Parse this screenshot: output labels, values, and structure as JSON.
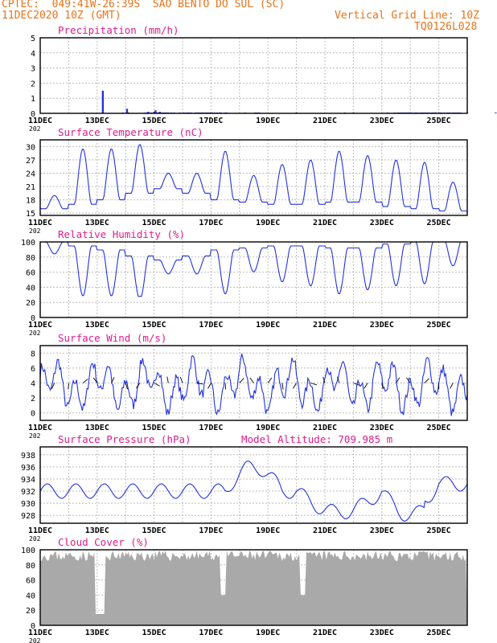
{
  "header": {
    "line1": "CPTEC:  049:41W-26:39S  SAO BENTO DO SUL (SC)",
    "line2": "11DEC2020 10Z (GMT)",
    "grid_note": "Vertical Grid Line: 10Z",
    "code": "TQ0126L028"
  },
  "colors": {
    "header": "#e8731a",
    "title": "#e01c8c",
    "data": "#2233dd",
    "cloud": "#a9a9a9",
    "grid": "#bbbbbb"
  },
  "x_axis": {
    "tick_labels": [
      "11DEC",
      "13DEC",
      "15DEC",
      "17DEC",
      "19DEC",
      "21DEC",
      "23DEC",
      "25DEC"
    ],
    "year_fragment": "202"
  },
  "chart_data": [
    {
      "id": "precip",
      "type": "bar",
      "title": "Precipitation (mm/h)",
      "ylim": [
        0,
        5
      ],
      "yticks": [
        "0",
        "1",
        "2",
        "3",
        "4",
        "5"
      ],
      "x": [
        1.55,
        2.2,
        2.9,
        3.05,
        3.1,
        3.7,
        3.75,
        3.8,
        3.9,
        4.0,
        4.05,
        4.1,
        4.15,
        4.2,
        4.25,
        4.3,
        4.35,
        4.4,
        4.45,
        4.5,
        4.6,
        4.7,
        4.9,
        5.05,
        5.15,
        5.2,
        5.25,
        5.3,
        5.45,
        5.5,
        5.55,
        5.6,
        5.65,
        5.7,
        5.75,
        5.8,
        5.85,
        5.9,
        5.95,
        6.0,
        6.05,
        6.1,
        6.2,
        6.3,
        6.35,
        6.5,
        6.55,
        7.2,
        7.55,
        7.6,
        7.65,
        7.7,
        9.0,
        10.7,
        11.0,
        12.2,
        12.45,
        12.55,
        12.6,
        12.65,
        12.7,
        12.75,
        12.8,
        12.85,
        12.9,
        12.95,
        13.0,
        13.05,
        13.15,
        13.2,
        13.25,
        13.35,
        13.4,
        13.45,
        13.5,
        13.55,
        13.6,
        13.65,
        13.75,
        13.8,
        13.85,
        13.9,
        14.0,
        14.05,
        14.1,
        14.2,
        14.3,
        14.35,
        14.4,
        14.5,
        14.55,
        14.6,
        14.65,
        14.7,
        14.75,
        15.0,
        16.0,
        17.5
      ],
      "values": [
        0.05,
        1.5,
        0.05,
        0.3,
        0.05,
        0.05,
        0.05,
        0.1,
        0.05,
        0.1,
        0.2,
        0.05,
        0.05,
        0.1,
        0.05,
        0.05,
        0.05,
        0.05,
        0.05,
        0.05,
        0.05,
        0.05,
        0.05,
        0.05,
        0.05,
        0.05,
        0.05,
        0.05,
        0.05,
        0.05,
        0.05,
        0.05,
        0.05,
        0.05,
        0.05,
        0.05,
        0.05,
        0.05,
        0.05,
        0.05,
        0.05,
        0.05,
        0.05,
        0.05,
        0.05,
        0.05,
        0.05,
        0.05,
        0.05,
        0.05,
        0.05,
        0.05,
        0.05,
        0.05,
        0.05,
        0.05,
        0.05,
        0.05,
        0.05,
        0.05,
        0.05,
        0.05,
        0.05,
        0.05,
        0.05,
        0.05,
        0.05,
        0.05,
        0.05,
        0.05,
        0.05,
        0.05,
        0.05,
        0.05,
        0.05,
        0.05,
        0.05,
        0.05,
        0.05,
        0.05,
        0.05,
        0.05,
        0.05,
        0.05,
        0.05,
        0.05,
        0.05,
        0.05,
        0.05,
        0.05,
        0.05,
        0.05,
        0.05,
        0.05,
        0.05,
        0.05,
        0.05,
        0.05
      ]
    },
    {
      "id": "temp",
      "type": "line",
      "title": "Surface Temperature (nC)",
      "ylim": [
        14.5,
        31.5
      ],
      "yticks": [
        "15",
        "18",
        "21",
        "24",
        "27",
        "30"
      ]
    },
    {
      "id": "rh",
      "type": "line",
      "title": "Relative Humidity (%)",
      "ylim": [
        0,
        100
      ],
      "yticks": [
        "0",
        "20",
        "40",
        "60",
        "80",
        "100"
      ]
    },
    {
      "id": "wind",
      "type": "line",
      "title": "Surface Wind (m/s)",
      "ylim": [
        -1,
        9
      ],
      "yticks": [
        "0",
        "2",
        "4",
        "6",
        "8"
      ]
    },
    {
      "id": "pres",
      "type": "line",
      "title": "Surface Pressure (hPa)",
      "annotation": "Model Altitude: 709.985 m",
      "ylim": [
        926.7,
        939.3
      ],
      "yticks": [
        "928",
        "930",
        "932",
        "934",
        "936",
        "938"
      ]
    },
    {
      "id": "cloud",
      "type": "area",
      "title": "Cloud Cover (%)",
      "ylim": [
        0,
        100
      ],
      "yticks": [
        "0",
        "20",
        "40",
        "60",
        "80",
        "100"
      ]
    }
  ]
}
